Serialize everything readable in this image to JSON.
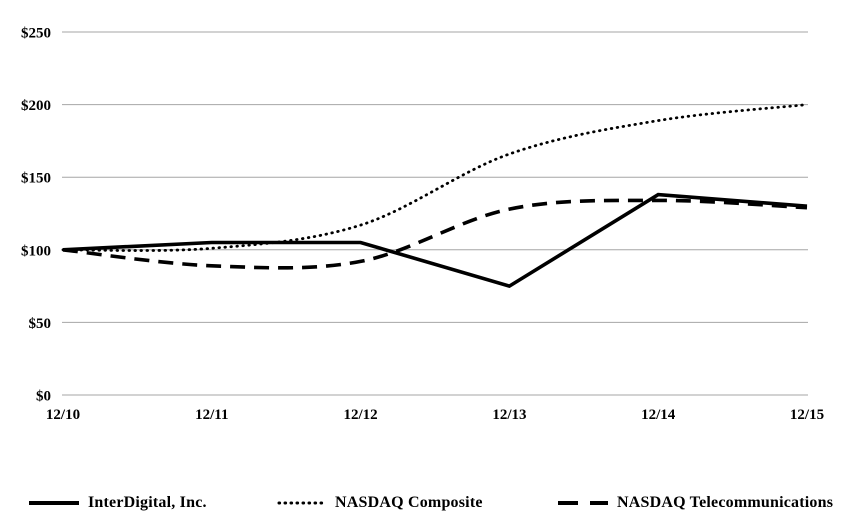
{
  "chart_data": {
    "type": "line",
    "categories": [
      "12/10",
      "12/11",
      "12/12",
      "12/13",
      "12/14",
      "12/15"
    ],
    "series": [
      {
        "name": "InterDigital, Inc.",
        "line_style": "solid",
        "smooth": false,
        "values": [
          100,
          105,
          105,
          75,
          138,
          130
        ]
      },
      {
        "name": "NASDAQ Composite",
        "line_style": "dotted",
        "smooth": true,
        "values": [
          100,
          101,
          117,
          166,
          189,
          200
        ]
      },
      {
        "name": "NASDAQ Telecommunications",
        "line_style": "dashed",
        "smooth": true,
        "values": [
          100,
          89,
          92,
          128,
          134,
          129
        ]
      }
    ],
    "y_axis": {
      "range": [
        0,
        250
      ],
      "ticks": [
        0,
        50,
        100,
        150,
        200,
        250
      ],
      "tick_labels": [
        "$0",
        "$50",
        "$100",
        "$150",
        "$200",
        "$250"
      ]
    },
    "grid": true,
    "legend_position": "bottom",
    "colors": {
      "line": "#000000",
      "gridline": "#a6a6a6",
      "text": "#000000",
      "background": "#ffffff"
    }
  }
}
